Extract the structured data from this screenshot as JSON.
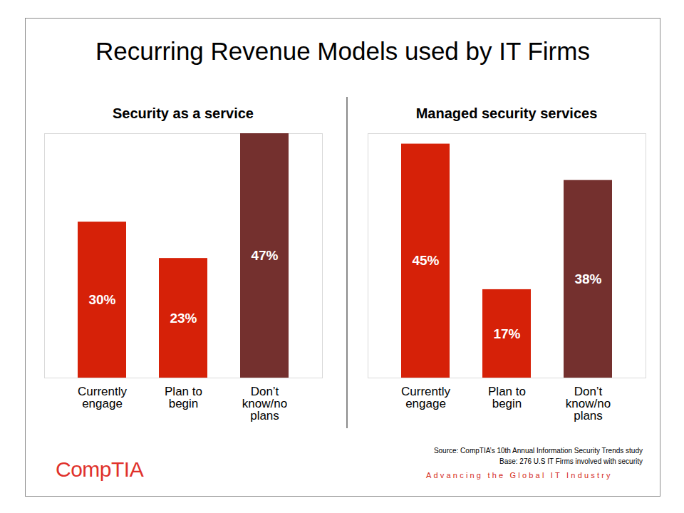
{
  "page": {
    "title": "Recurring Revenue Models used by IT Firms",
    "source": "Source: CompTIA’s 10th Annual Information Security Trends study",
    "base": "Base: 276 U.S IT Firms involved with security",
    "logo": "CompTIA",
    "tagline": "Advancing the Global IT Industry"
  },
  "chart_data": [
    {
      "type": "bar",
      "title": "Security as a service",
      "categories": [
        "Currently engage",
        "Plan to begin",
        "Don’t know/no plans"
      ],
      "values": [
        30,
        23,
        47
      ],
      "value_labels": [
        "30%",
        "23%",
        "47%"
      ],
      "colors": [
        "#d62108",
        "#d62108",
        "#74302e"
      ],
      "ylim": [
        0,
        47
      ],
      "data_labels": true,
      "tick_labels": "x"
    },
    {
      "type": "bar",
      "title": "Managed security services",
      "categories": [
        "Currently engage",
        "Plan to begin",
        "Don’t know/no plans"
      ],
      "values": [
        45,
        17,
        38
      ],
      "value_labels": [
        "45%",
        "17%",
        "38%"
      ],
      "colors": [
        "#d62108",
        "#d62108",
        "#74302e"
      ],
      "ylim": [
        0,
        47
      ],
      "data_labels": true,
      "tick_labels": "x"
    }
  ]
}
